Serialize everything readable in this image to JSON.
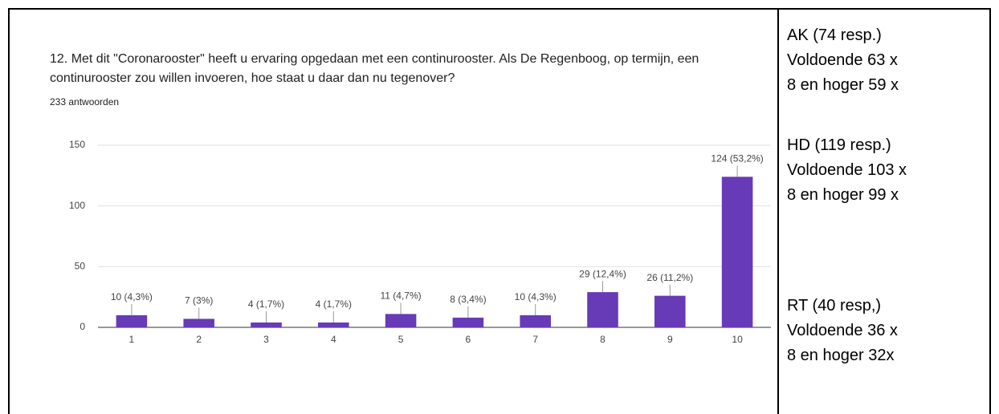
{
  "chart_data": {
    "type": "bar",
    "title": "12. Met dit \"Coronarooster\" heeft u ervaring opgedaan met een continurooster. Als De Regenboog, op termijn, een continurooster zou willen invoeren, hoe staat u daar dan nu tegenover?",
    "subtitle": "233 antwoorden",
    "categories": [
      "1",
      "2",
      "3",
      "4",
      "5",
      "6",
      "7",
      "8",
      "9",
      "10"
    ],
    "values": [
      10,
      7,
      4,
      4,
      11,
      8,
      10,
      29,
      26,
      124
    ],
    "value_labels": [
      "10 (4,3%)",
      "7 (3%)",
      "4 (1,7%)",
      "4 (1,7%)",
      "11 (4,7%)",
      "8 (3,4%)",
      "10 (4,3%)",
      "29 (12,4%)",
      "26 (11,2%)",
      "124 (53,2%)"
    ],
    "color": "#673ab7",
    "ylim": [
      0,
      150
    ],
    "yticks": [
      0,
      50,
      100,
      150
    ],
    "grid": true
  },
  "side": [
    [
      "AK (74 resp.)",
      "Voldoende 63 x",
      "8 en hoger 59 x"
    ],
    [
      "HD (119 resp.)",
      "Voldoende 103 x",
      "8 en hoger 99 x"
    ],
    [
      "RT (40 resp,)",
      "Voldoende 36 x",
      "8 en hoger 32x"
    ]
  ]
}
